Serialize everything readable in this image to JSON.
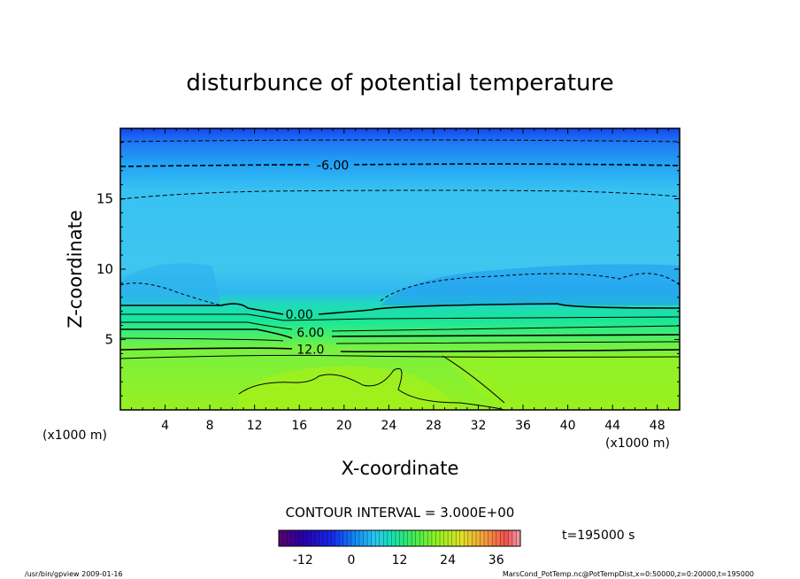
{
  "chart_data": {
    "type": "heatmap",
    "title": "disturbunce of potential temperature",
    "xlabel": "X-coordinate",
    "ylabel": "Z-coordinate",
    "x_unit_label_left": "(x1000 m)",
    "x_unit_label_right": "(x1000 m)",
    "xlim": [
      0,
      50
    ],
    "ylim": [
      0,
      20
    ],
    "x_ticks": [
      4,
      8,
      12,
      16,
      20,
      24,
      28,
      32,
      36,
      40,
      44,
      48
    ],
    "y_ticks": [
      5,
      10,
      15
    ],
    "contour_interval_label": "CONTOUR INTERVAL = 3.000E+00",
    "contour_labels": [
      {
        "text": "-6.00",
        "x": 19,
        "z": 17.4
      },
      {
        "text": "0.00",
        "x": 16,
        "z": 6.8
      },
      {
        "text": "6.00",
        "x": 17,
        "z": 5.5
      },
      {
        "text": "12.0",
        "x": 17,
        "z": 4.3
      }
    ],
    "time_label": "t=195000 s",
    "colorbar": {
      "min": -18,
      "max": 42,
      "ticks": [
        -12,
        0,
        12,
        24,
        36
      ]
    },
    "colors": {
      "top": "#1a4cf2",
      "upper": "#22a8f5",
      "middle": "#3cc8ee",
      "transition": "#17e0b0",
      "warm": "#80ef3a",
      "warmest": "#a4f218"
    }
  },
  "footer": {
    "left": "/usr/bin/gpview   2009-01-16",
    "right": "MarsCond_PotTemp.nc@PotTempDist,x=0:50000,z=0:20000,t=195000"
  }
}
